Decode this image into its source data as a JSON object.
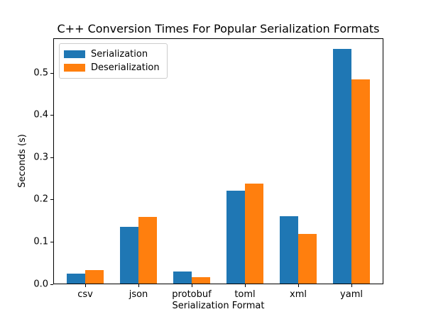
{
  "chart_data": {
    "type": "bar",
    "title": "C++ Conversion Times For Popular Serialization Formats",
    "xlabel": "Serialization Format",
    "ylabel": "Seconds (s)",
    "categories": [
      "csv",
      "json",
      "protobuf",
      "toml",
      "xml",
      "yaml"
    ],
    "series": [
      {
        "name": "Serialization",
        "color": "#1f77b4",
        "values": [
          0.022,
          0.133,
          0.027,
          0.219,
          0.159,
          0.555
        ]
      },
      {
        "name": "Deserialization",
        "color": "#ff7f0e",
        "values": [
          0.031,
          0.157,
          0.015,
          0.236,
          0.117,
          0.483
        ]
      }
    ],
    "ylim": [
      0,
      0.582
    ],
    "ytick_labels": [
      "0.0",
      "0.1",
      "0.2",
      "0.3",
      "0.4",
      "0.5"
    ],
    "legend": {
      "position": "upper left",
      "entries": [
        "Serialization",
        "Deserialization"
      ]
    },
    "grid": false,
    "background_color": "#ffffff",
    "axis_color": "#000000"
  }
}
